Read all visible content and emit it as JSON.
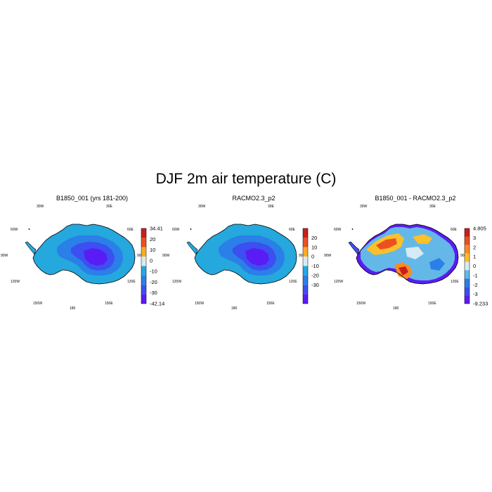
{
  "figure": {
    "title": "DJF 2m air temperature (C)"
  },
  "panels": [
    {
      "title": "B1850_001 (yrs 181-200)",
      "lon_labels": [
        "30W",
        "30E",
        "60W",
        "60E",
        "90W",
        "90E",
        "120W",
        "120E",
        "150W",
        "150E",
        "180"
      ],
      "colorbar": {
        "labels": [
          "34.41",
          "20",
          "10",
          "0",
          "-10",
          "-20",
          "-30",
          "-42.14"
        ],
        "colors": [
          "#c8201c",
          "#ec5021",
          "#fbab23",
          "#d5eaf4",
          "#24a8dd",
          "#2b7fe8",
          "#3c4ff0",
          "#5a1cf5"
        ],
        "min": -42.14,
        "max": 34.41
      }
    },
    {
      "title": "RACMO2.3_p2",
      "lon_labels": [
        "30W",
        "30E",
        "60W",
        "60E",
        "90W",
        "90E",
        "120W",
        "120E",
        "150W",
        "150E",
        "180"
      ],
      "colorbar": {
        "labels": [
          "20",
          "10",
          "0",
          "-10",
          "-20",
          "-30"
        ],
        "colors": [
          "#c8201c",
          "#ec5021",
          "#fbab23",
          "#d5eaf4",
          "#24a8dd",
          "#2b7fe8",
          "#3c4ff0",
          "#5a1cf5"
        ]
      }
    },
    {
      "title": "B1850_001 - RACMO2.3_p2",
      "lon_labels": [
        "30W",
        "30E",
        "60W",
        "60E",
        "90W",
        "90E",
        "120W",
        "120E",
        "150W",
        "150E",
        "180"
      ],
      "colorbar": {
        "labels": [
          "4.805",
          "3",
          "2",
          "1",
          "0",
          "-1",
          "-2",
          "-3",
          "-9.233"
        ],
        "colors": [
          "#c8201c",
          "#ec5021",
          "#fb8a22",
          "#fbc02a",
          "#d5eaf4",
          "#64b8e8",
          "#2b7fe8",
          "#3c4ff0",
          "#5a1cf5"
        ],
        "min": -9.233,
        "max": 4.805
      }
    }
  ]
}
